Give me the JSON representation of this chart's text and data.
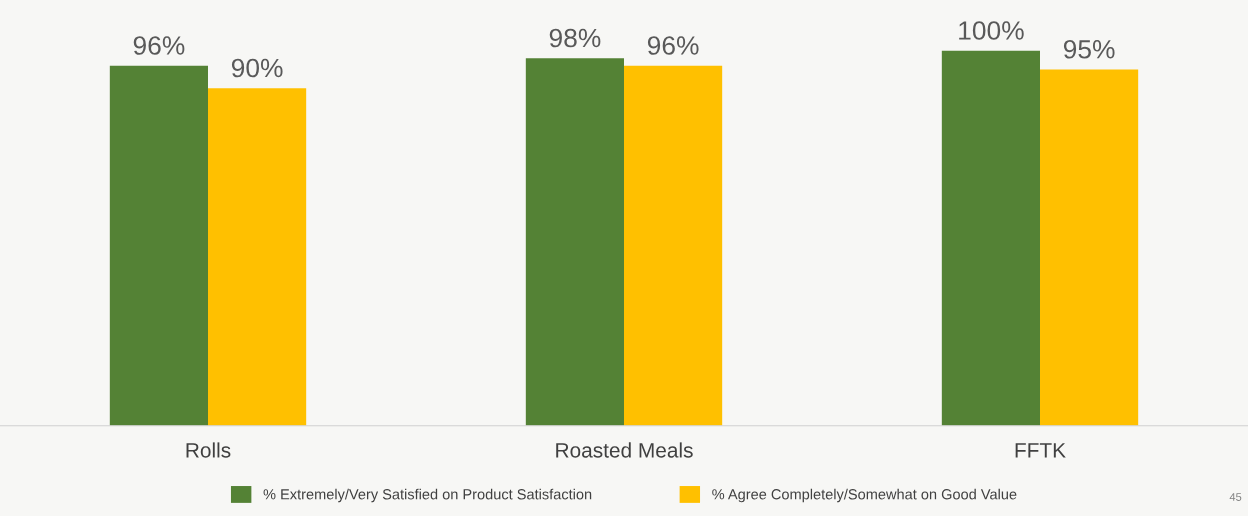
{
  "chart_data": {
    "type": "bar",
    "categories": [
      "Rolls",
      "Roasted Meals",
      "FFTK"
    ],
    "series": [
      {
        "name": "% Extremely/Very Satisfied on Product Satisfaction",
        "color": "#548235",
        "values": [
          96,
          98,
          100
        ],
        "value_labels": [
          "96%",
          "98%",
          "100%"
        ]
      },
      {
        "name": "% Agree Completely/Somewhat on Good Value",
        "color": "#ffc000",
        "values": [
          90,
          96,
          95
        ],
        "value_labels": [
          "90%",
          "96%",
          "95%"
        ]
      }
    ],
    "legend": "bottom",
    "grid": false,
    "tick_labels": "x",
    "annotations": [
      "45"
    ]
  }
}
